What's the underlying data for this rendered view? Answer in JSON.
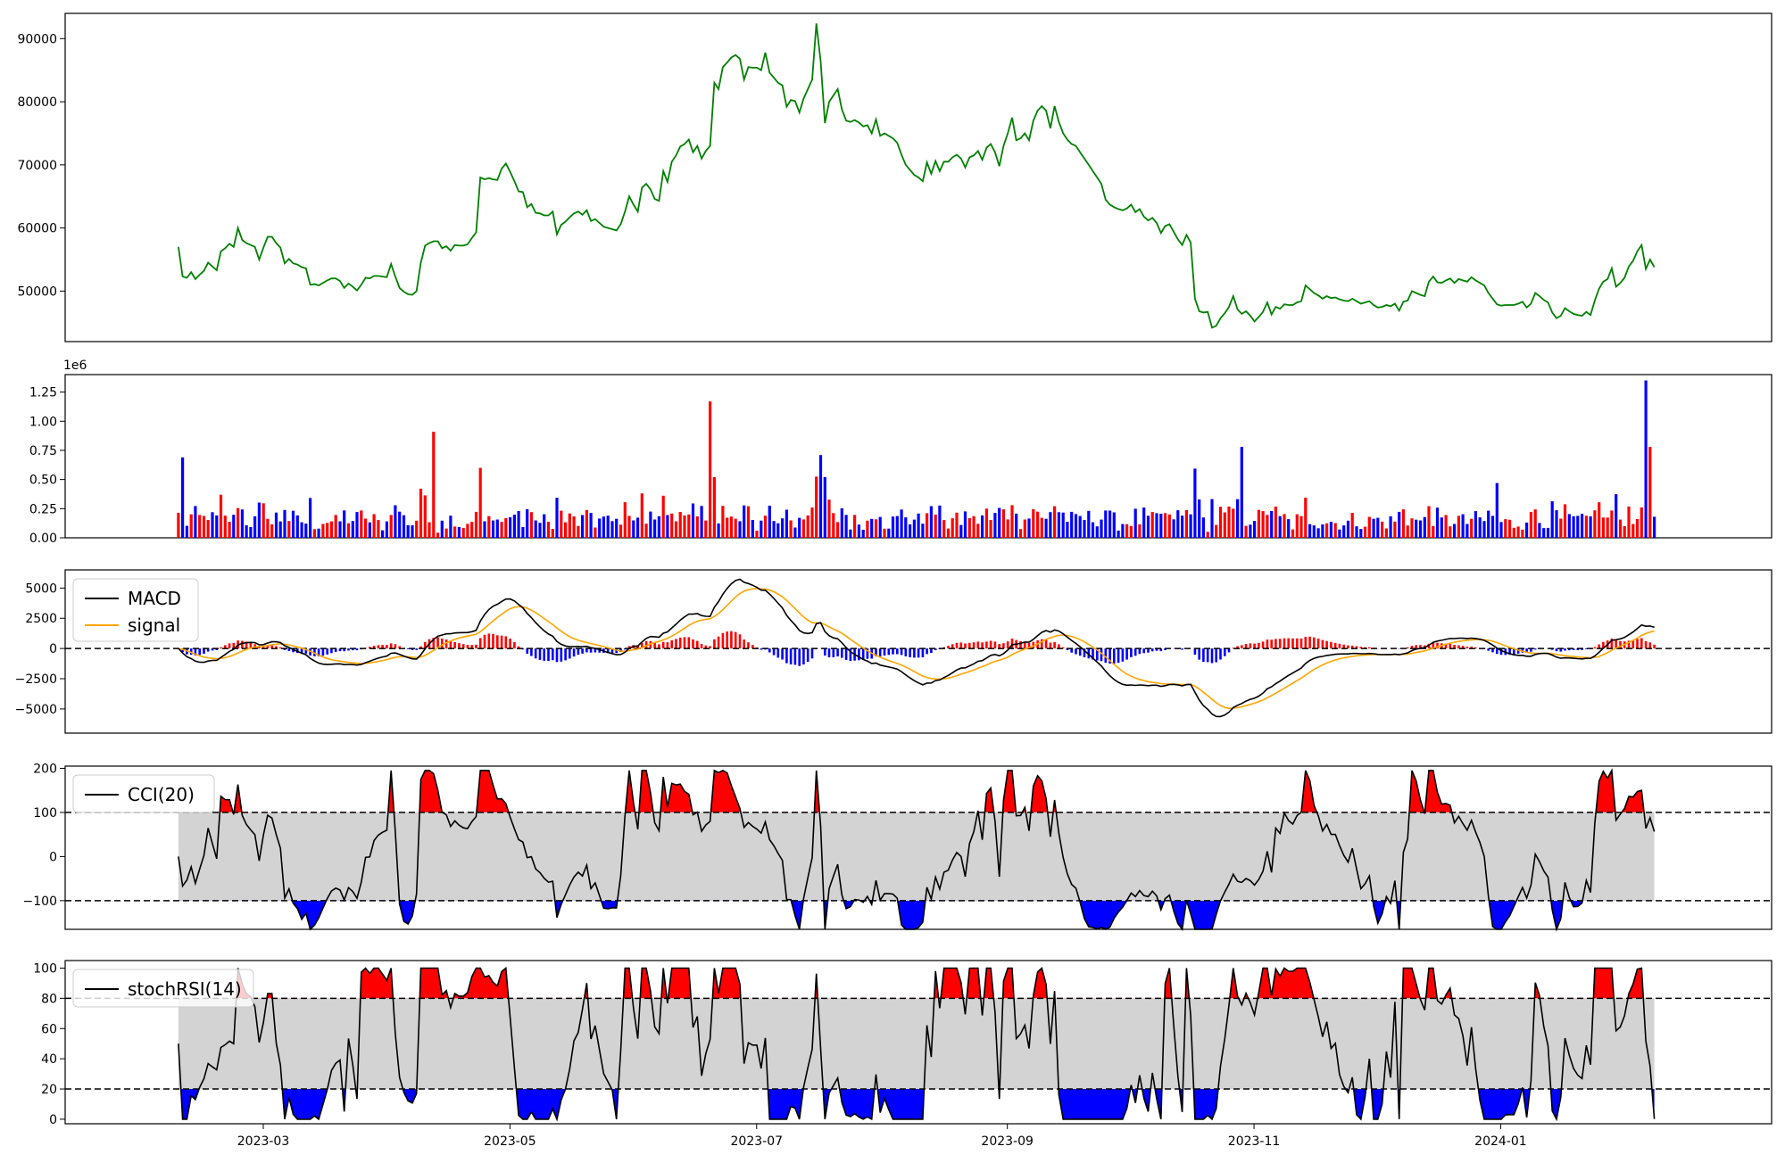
{
  "chart_data": [
    {
      "type": "line",
      "panel": "price",
      "ylim": [
        42000,
        94000
      ],
      "yticks": [
        "50000",
        "60000",
        "70000",
        "80000",
        "90000"
      ],
      "line_color": "#008000",
      "series": [
        {
          "values": [
            57000,
            52300,
            52100,
            53000,
            51900,
            52600,
            53200,
            54500,
            53900,
            53300,
            56300,
            56800,
            57500,
            57000,
            60000,
            58100,
            57600,
            57300,
            57000,
            55000,
            56900,
            58600,
            58600,
            57600,
            56900,
            54400,
            55100,
            54400,
            54200,
            53800,
            53600,
            51000,
            51100,
            50900,
            51300,
            51700,
            52000,
            52000,
            51600,
            50500,
            51200,
            50700,
            50100,
            51000,
            52100,
            52000,
            52400,
            52400,
            52300,
            52200,
            54300,
            52300,
            50500,
            49900,
            49500,
            49400,
            50000,
            54500,
            57200,
            57600,
            57900,
            57900,
            56800,
            57100,
            56400,
            57300,
            57200,
            57200,
            57400,
            58400,
            59300,
            68000,
            67700,
            67900,
            67700,
            67600,
            69400,
            70200,
            68900,
            67400,
            65800,
            65700,
            63300,
            63800,
            62400,
            62300,
            62000,
            62000,
            62600,
            59000,
            60500,
            61000,
            61700,
            62300,
            62600,
            62100,
            62800,
            61100,
            61400,
            60800,
            60200,
            60000,
            59800,
            59600,
            60600,
            62600,
            65000,
            63700,
            62600,
            66400,
            67000,
            66100,
            64600,
            64300,
            69000,
            67300,
            70500,
            71500,
            72900,
            73300,
            74000,
            72000,
            73000,
            71000,
            72200,
            73000,
            83000,
            82000,
            85500,
            86200,
            87000,
            87400,
            86800,
            83500,
            85500,
            85400,
            85400,
            85000,
            87800,
            84600,
            83800,
            83000,
            82600,
            79200,
            80300,
            80100,
            78300,
            80500,
            82000,
            83500,
            92400,
            86400,
            76600,
            80000,
            81000,
            82000,
            78800,
            77000,
            76800,
            77100,
            76700,
            76100,
            76300,
            75000,
            77200,
            74600,
            75000,
            74600,
            74200,
            73500,
            71600,
            70000,
            69200,
            68400,
            68000,
            67400,
            70400,
            68600,
            70600,
            69000,
            70500,
            70500,
            71200,
            71600,
            71000,
            69600,
            71200,
            71500,
            72200,
            70800,
            72700,
            73300,
            72000,
            69800,
            73000,
            75000,
            77500,
            73900,
            74200,
            75000,
            73900,
            77000,
            78600,
            79300,
            78600,
            75800,
            79300,
            76800,
            75000,
            74000,
            73300,
            73000,
            72000,
            71000,
            70000,
            69000,
            68000,
            67000,
            64500,
            63700,
            63300,
            63000,
            62800,
            63100,
            63700,
            62500,
            63000,
            61800,
            61200,
            61600,
            60800,
            59200,
            60300,
            60600,
            59400,
            58200,
            57300,
            58900,
            57700,
            48800,
            46800,
            46600,
            46700,
            44200,
            44500,
            45700,
            46500,
            47500,
            49200,
            47100,
            46400,
            46800,
            46100,
            45200,
            45900,
            46700,
            48200,
            46300,
            47500,
            47200,
            47900,
            47800,
            47800,
            48200,
            48400,
            50900,
            50300,
            49700,
            49300,
            48800,
            49200,
            48900,
            49000,
            48700,
            48500,
            48400,
            48800,
            48400,
            48000,
            48200,
            48400,
            47800,
            47400,
            47500,
            47800,
            47600,
            48000,
            46900,
            48300,
            48500,
            50000,
            49700,
            49400,
            49200,
            51500,
            52300,
            51400,
            51300,
            51700,
            52000,
            51300,
            51900,
            51700,
            51500,
            52200,
            51700,
            51300,
            50900,
            49700,
            48800,
            47900,
            47700,
            47800,
            47800,
            47800,
            48000,
            48300,
            47400,
            48000,
            49700,
            49200,
            48600,
            48200,
            46600,
            45700,
            46100,
            47300,
            46800,
            46400,
            46200,
            46100,
            46700,
            46200,
            48500,
            50400,
            51500,
            51900,
            53600,
            50700,
            51300,
            52100,
            53900,
            54800,
            56300,
            57300,
            53500,
            55000,
            53800
          ],
          "start_date": "2023-02-08",
          "end_date": "2024-02-08"
        }
      ]
    },
    {
      "type": "bar",
      "panel": "volume",
      "ylim": [
        0,
        1400000
      ],
      "yticks": [
        "0.00",
        "0.25",
        "0.50",
        "0.75",
        "1.00",
        "1.25"
      ],
      "offset_label": "1e6",
      "colors": {
        "up": "#ff0000",
        "down": "#0000ff"
      }
    },
    {
      "type": "line",
      "panel": "macd",
      "ylim": [
        -7000,
        6500
      ],
      "yticks": [
        "5000",
        "2500",
        "0",
        "−2500",
        "−5000"
      ],
      "legend": [
        "MACD",
        "signal"
      ],
      "colors": {
        "macd": "#000000",
        "signal": "#ffa500",
        "hist_up": "#ff0000",
        "hist_down": "#0000ff"
      }
    },
    {
      "type": "area",
      "panel": "cci",
      "ylim": [
        -165,
        205
      ],
      "yticks": [
        "200",
        "100",
        "0",
        "−100"
      ],
      "bands": [
        100,
        -100
      ],
      "legend": [
        "CCI(20)"
      ],
      "colors": {
        "above": "#ff0000",
        "below": "#0000ff",
        "band": "#d3d3d3"
      }
    },
    {
      "type": "area",
      "panel": "stochrsi",
      "ylim": [
        -3,
        105
      ],
      "yticks": [
        "100",
        "80",
        "60",
        "40",
        "20",
        "0"
      ],
      "bands": [
        80,
        20
      ],
      "legend": [
        "stochRSI(14)"
      ],
      "colors": {
        "above": "#ff0000",
        "below": "#0000ff",
        "band": "#d3d3d3"
      }
    }
  ],
  "x_axis": {
    "ticks": [
      "2023-03",
      "2023-05",
      "2023-07",
      "2023-09",
      "2023-11",
      "2024-01"
    ],
    "tick_dates": [
      "2023-03-01",
      "2023-05-01",
      "2023-07-01",
      "2023-09-01",
      "2023-11-01",
      "2024-01-01"
    ],
    "range": [
      "2023-01-11",
      "2024-03-08"
    ]
  }
}
